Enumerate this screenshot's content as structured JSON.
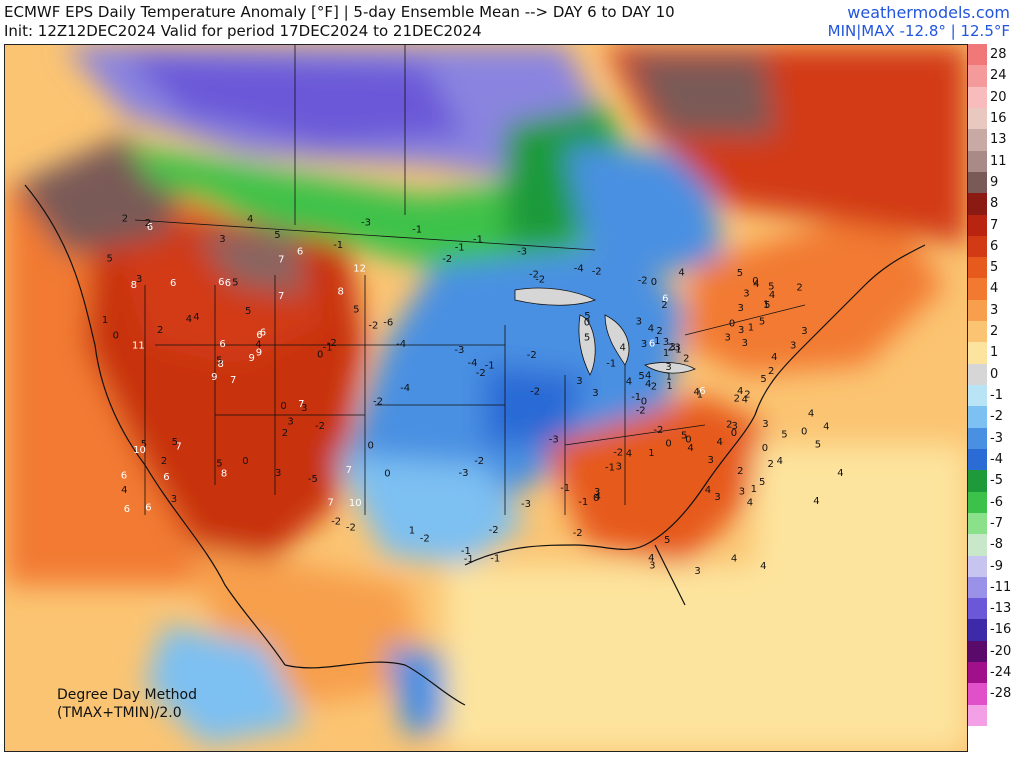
{
  "header": {
    "title": "ECMWF EPS Daily Temperature Anomaly [°F] | 5-day Ensemble Mean --> DAY 6 to DAY 10",
    "subtitle": "Init: 12Z12DEC2024 Valid for period 17DEC2024 to 21DEC2024",
    "site": "weathermodels.com",
    "minmax": "MIN|MAX -12.8° | 12.5°F"
  },
  "method": {
    "line1": "Degree Day Method",
    "line2": "(TMAX+TMIN)/2.0"
  },
  "legend": [
    {
      "label": "28",
      "color": "#f07878"
    },
    {
      "label": "24",
      "color": "#f49a9a"
    },
    {
      "label": "20",
      "color": "#f8bcbc"
    },
    {
      "label": "16",
      "color": "#e9c8c0"
    },
    {
      "label": "13",
      "color": "#c9a9a4"
    },
    {
      "label": "11",
      "color": "#a98a86"
    },
    {
      "label": "9",
      "color": "#7a5a56"
    },
    {
      "label": "8",
      "color": "#8b1b12"
    },
    {
      "label": "7",
      "color": "#b8240f"
    },
    {
      "label": "6",
      "color": "#d23a16"
    },
    {
      "label": "5",
      "color": "#e65a1e"
    },
    {
      "label": "4",
      "color": "#f27a30"
    },
    {
      "label": "3",
      "color": "#f79f4c"
    },
    {
      "label": "2",
      "color": "#fbc472"
    },
    {
      "label": "1",
      "color": "#fde49e"
    },
    {
      "label": "0",
      "color": "#d6d6d6"
    },
    {
      "label": "-1",
      "color": "#b8e4f6"
    },
    {
      "label": "-2",
      "color": "#7dc0f2"
    },
    {
      "label": "-3",
      "color": "#4a90e2"
    },
    {
      "label": "-4",
      "color": "#2a6bd6"
    },
    {
      "label": "-5",
      "color": "#1e9a3a"
    },
    {
      "label": "-6",
      "color": "#3cc24a"
    },
    {
      "label": "-7",
      "color": "#8be08a"
    },
    {
      "label": "-8",
      "color": "#c9e8c9"
    },
    {
      "label": "-9",
      "color": "#c7c4f0"
    },
    {
      "label": "-11",
      "color": "#9a92e8"
    },
    {
      "label": "-13",
      "color": "#6a58d8"
    },
    {
      "label": "-16",
      "color": "#3c2aa8"
    },
    {
      "label": "-20",
      "color": "#5a0a6a"
    },
    {
      "label": "-24",
      "color": "#a0108a"
    },
    {
      "label": "-28",
      "color": "#e050c8"
    },
    {
      "label": "",
      "color": "#f4a0e6"
    }
  ],
  "station_values": [
    "7",
    "8",
    "8",
    "6",
    "6",
    "7",
    "5",
    "5",
    "7",
    "9",
    "6",
    "10",
    "11",
    "12",
    "9",
    "7",
    "6",
    "6",
    "5",
    "5",
    "4",
    "4",
    "6",
    "6",
    "6",
    "3",
    "3",
    "3",
    "0",
    "0",
    "5",
    "5",
    "5",
    "6",
    "6",
    "6",
    "5",
    "7",
    "7",
    "7",
    "4",
    "4",
    "2",
    "2",
    "3",
    "1",
    "4",
    "6",
    "8",
    "9",
    "10",
    "8",
    "5",
    "3",
    "3",
    "2",
    "2",
    "2",
    "0",
    "-2",
    "-1",
    "-4",
    "-2",
    "-6",
    "-4",
    "-3",
    "-3",
    "-2",
    "-4",
    "-5",
    "-3",
    "-2",
    "-3",
    "-4",
    "-2",
    "-1",
    "-2",
    "-2",
    "-3",
    "-2",
    "-1",
    "-2",
    "-2",
    "-2",
    "-1",
    "-1",
    "-2",
    "-2",
    "-1",
    "-3",
    "-1",
    "-2",
    "-2",
    "-1",
    "-2",
    "-1",
    "-1",
    "-1",
    "-2",
    "-2",
    "-2",
    "-1",
    "-1",
    "0",
    "0",
    "0",
    "1",
    "1",
    "1",
    "0",
    "0",
    "0",
    "-1",
    "-2",
    "-2",
    "-1",
    "0",
    "1",
    "1",
    "0",
    "0",
    "0",
    "2",
    "3",
    "2",
    "3",
    "4",
    "3",
    "4",
    "5",
    "4",
    "3",
    "4",
    "3",
    "2",
    "3",
    "4",
    "3",
    "4",
    "5",
    "4",
    "3",
    "4",
    "5",
    "6",
    "5",
    "4",
    "4",
    "5",
    "6",
    "5",
    "4",
    "3",
    "3",
    "4",
    "4",
    "3",
    "3",
    "4",
    "5",
    "3",
    "3",
    "4",
    "5",
    "4",
    "3",
    "3",
    "4",
    "4",
    "4",
    "5",
    "5",
    "6",
    "5",
    "4",
    "4",
    "5",
    "5",
    "4",
    "3",
    "2",
    "2",
    "1",
    "1",
    "2",
    "3",
    "2",
    "3",
    "3",
    "4",
    "4",
    "4",
    "3",
    "3",
    "2",
    "2",
    "1",
    "0",
    "0",
    "0",
    "1",
    "2",
    "3",
    "4",
    "3",
    "2",
    "2",
    "1",
    "0"
  ]
}
